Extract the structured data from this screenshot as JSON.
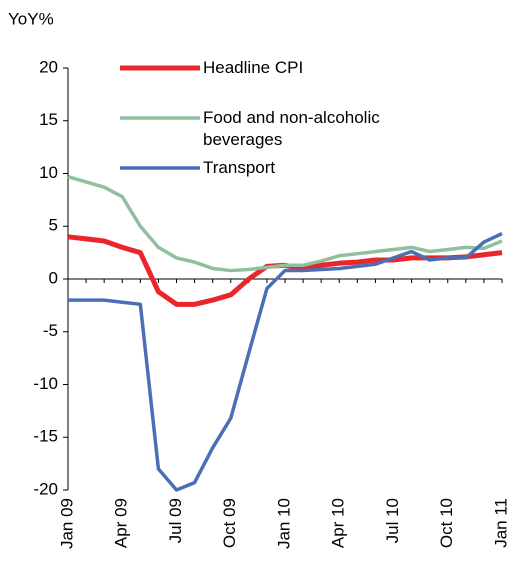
{
  "chart_data": {
    "type": "line",
    "y_label": "YoY%",
    "categories": [
      "Jan 09",
      null,
      null,
      "Apr 09",
      null,
      null,
      "Jul 09",
      null,
      null,
      "Oct 09",
      null,
      null,
      "Jan 10",
      null,
      null,
      "Apr 10",
      null,
      null,
      "Jul 10",
      null,
      null,
      "Oct 10",
      null,
      null,
      "Jan 11"
    ],
    "series": [
      {
        "name": "Headline CPI",
        "color": "#e8262b",
        "values": [
          4.0,
          3.8,
          3.6,
          3.0,
          2.5,
          -1.2,
          -2.4,
          -2.4,
          -2.0,
          -1.5,
          0.0,
          1.2,
          1.3,
          1.0,
          1.3,
          1.5,
          1.6,
          1.8,
          1.8,
          2.0,
          2.0,
          2.0,
          2.1,
          2.3,
          2.5
        ]
      },
      {
        "name": "Food and non-alcoholic beverages",
        "color": "#8fbf9f",
        "values": [
          9.7,
          9.2,
          8.7,
          7.8,
          5.0,
          3.0,
          2.0,
          1.6,
          1.0,
          0.8,
          0.9,
          1.1,
          1.3,
          1.3,
          1.7,
          2.2,
          2.4,
          2.6,
          2.8,
          3.0,
          2.6,
          2.8,
          3.0,
          2.9,
          3.6
        ]
      },
      {
        "name": "Transport",
        "color": "#4a6fb6",
        "values": [
          -2.0,
          -2.0,
          -2.0,
          -2.2,
          -2.4,
          -18.0,
          -20.0,
          -19.3,
          -16.0,
          -13.2,
          -7.0,
          -0.9,
          0.8,
          0.8,
          0.9,
          1.0,
          1.2,
          1.4,
          2.0,
          2.6,
          1.8,
          2.0,
          2.0,
          3.5,
          4.3
        ]
      }
    ],
    "ylim": [
      -20,
      20
    ],
    "yticks": [
      -20,
      -15,
      -10,
      -5,
      0,
      5,
      10,
      15,
      20
    ]
  }
}
